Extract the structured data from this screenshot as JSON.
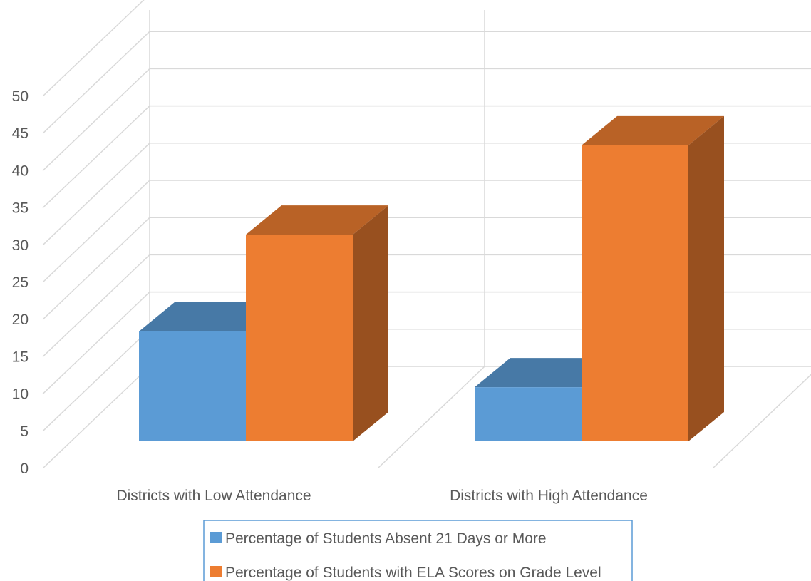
{
  "chart_data": {
    "type": "bar",
    "subtype": "3d-clustered-column",
    "title": "",
    "xlabel": "",
    "ylabel": "",
    "ylim": [
      0,
      50
    ],
    "yticks": [
      0,
      5,
      10,
      15,
      20,
      25,
      30,
      35,
      40,
      45,
      50
    ],
    "grid": true,
    "legend_position": "bottom",
    "categories": [
      "Districts with Low Attendance",
      "Districts with High Attendance"
    ],
    "series": [
      {
        "name": "Percentage of Students Absent 21 Days or More",
        "values": [
          14,
          6.5
        ],
        "color": "#5B9BD5"
      },
      {
        "name": "Percentage of Students with ELA Scores on Grade Level",
        "values": [
          27,
          39
        ],
        "color": "#ED7D31"
      }
    ]
  }
}
